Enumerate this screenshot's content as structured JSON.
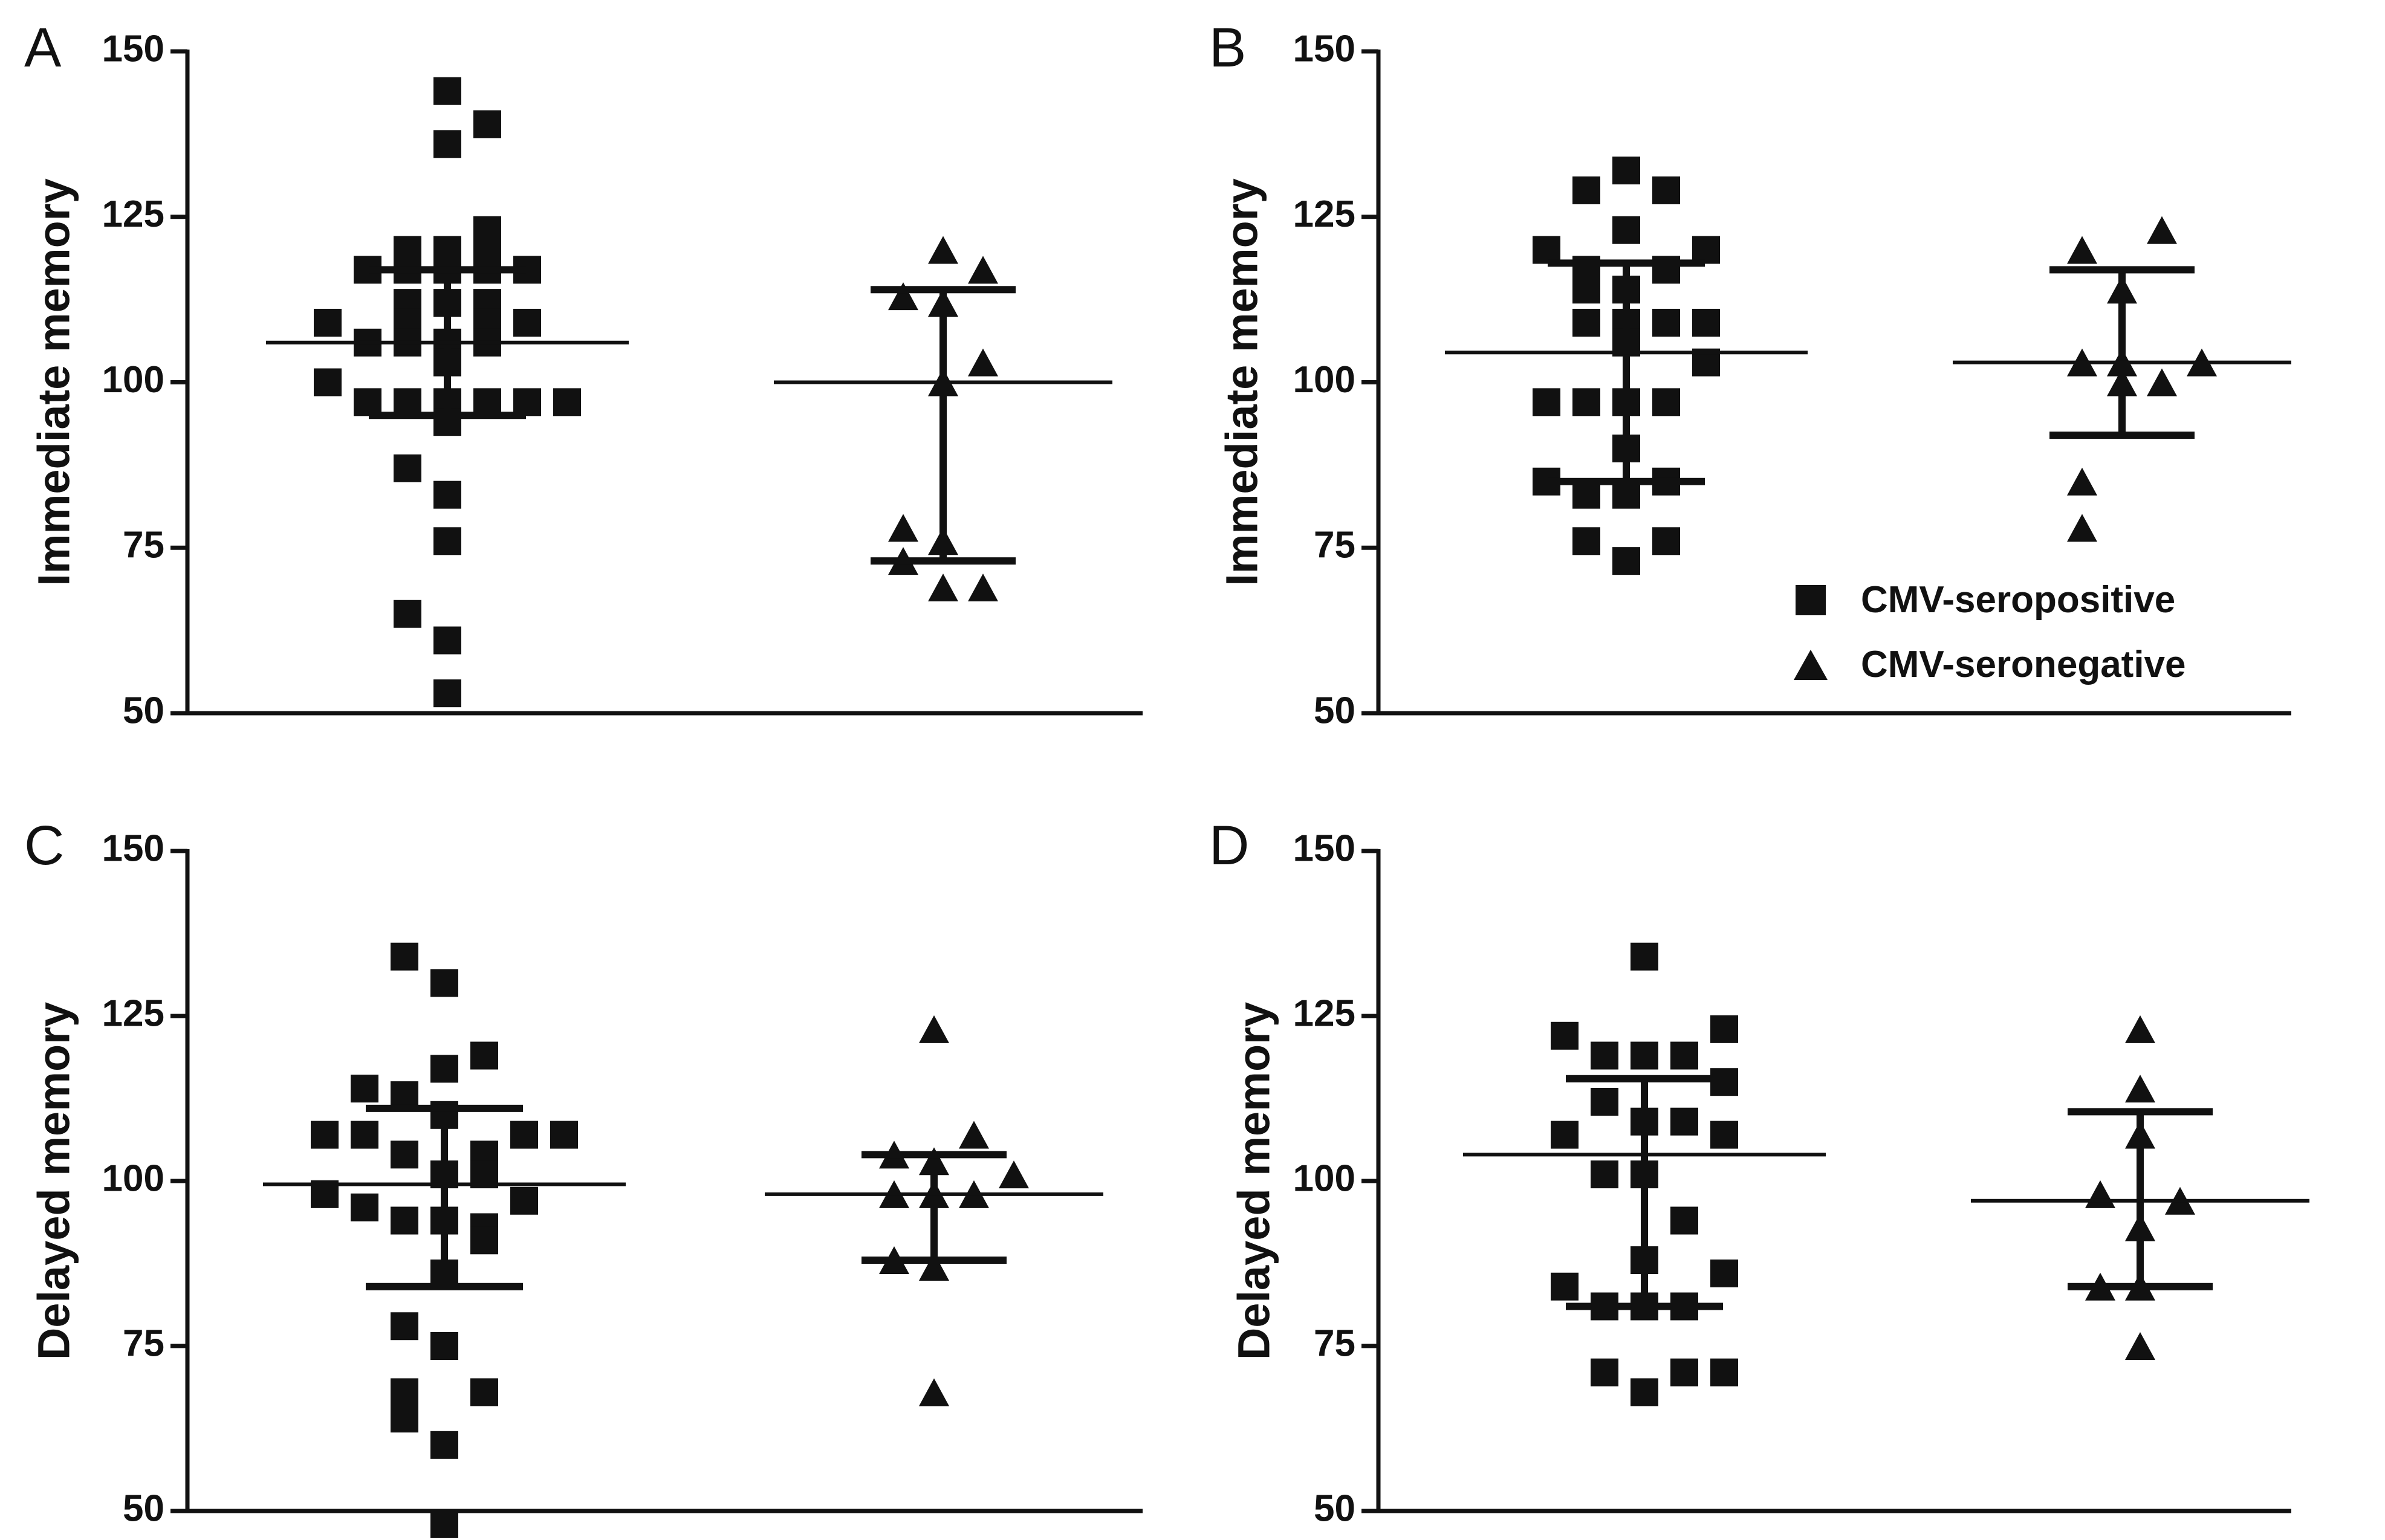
{
  "legend": {
    "items": [
      {
        "label": "CMV-seropositive",
        "marker": "square"
      },
      {
        "label": "CMV-seronegative",
        "marker": "triangle"
      }
    ]
  },
  "chart_data": [
    {
      "type": "scatter",
      "panel": "A",
      "title": "",
      "xlabel": "",
      "ylabel": "Immediate memory",
      "ylim": [
        50,
        150
      ],
      "yticks": [
        "50",
        "75",
        "100",
        "125",
        "150"
      ],
      "groups": [
        {
          "name": "CMV-seropositive",
          "marker": "square",
          "mean": 106,
          "sd_low": 95,
          "sd_high": 117,
          "points": [
            {
              "v": 144,
              "o": 0
            },
            {
              "v": 139,
              "o": 1
            },
            {
              "v": 136,
              "o": 0
            },
            {
              "v": 123,
              "o": 1
            },
            {
              "v": 120,
              "o": -1
            },
            {
              "v": 120,
              "o": 0
            },
            {
              "v": 120,
              "o": 1
            },
            {
              "v": 117,
              "o": -2
            },
            {
              "v": 117,
              "o": -1
            },
            {
              "v": 117,
              "o": 0
            },
            {
              "v": 117,
              "o": 1
            },
            {
              "v": 117,
              "o": 2
            },
            {
              "v": 112,
              "o": -1
            },
            {
              "v": 112,
              "o": 0
            },
            {
              "v": 112,
              "o": 1
            },
            {
              "v": 109,
              "o": -3
            },
            {
              "v": 109,
              "o": -1
            },
            {
              "v": 109,
              "o": 1
            },
            {
              "v": 109,
              "o": 2
            },
            {
              "v": 106,
              "o": -2
            },
            {
              "v": 106,
              "o": -1
            },
            {
              "v": 106,
              "o": 0
            },
            {
              "v": 106,
              "o": 1
            },
            {
              "v": 103,
              "o": 0
            },
            {
              "v": 100,
              "o": -3
            },
            {
              "v": 97,
              "o": -2
            },
            {
              "v": 97,
              "o": -1
            },
            {
              "v": 97,
              "o": 0
            },
            {
              "v": 97,
              "o": 1
            },
            {
              "v": 97,
              "o": 2
            },
            {
              "v": 97,
              "o": 3
            },
            {
              "v": 94,
              "o": 0
            },
            {
              "v": 87,
              "o": -1
            },
            {
              "v": 83,
              "o": 0
            },
            {
              "v": 76,
              "o": 0
            },
            {
              "v": 65,
              "o": -1
            },
            {
              "v": 61,
              "o": 0
            },
            {
              "v": 53,
              "o": 0
            }
          ]
        },
        {
          "name": "CMV-seronegative",
          "marker": "triangle",
          "mean": 100,
          "sd_low": 73,
          "sd_high": 114,
          "points": [
            {
              "v": 120,
              "o": 0
            },
            {
              "v": 117,
              "o": 1
            },
            {
              "v": 113,
              "o": -1
            },
            {
              "v": 112,
              "o": 0
            },
            {
              "v": 103,
              "o": 1
            },
            {
              "v": 100,
              "o": 0
            },
            {
              "v": 78,
              "o": -1
            },
            {
              "v": 76,
              "o": 0
            },
            {
              "v": 73,
              "o": -1
            },
            {
              "v": 69,
              "o": 0
            },
            {
              "v": 69,
              "o": 1
            }
          ]
        }
      ]
    },
    {
      "type": "scatter",
      "panel": "B",
      "title": "",
      "xlabel": "",
      "ylabel": "Immediate memory",
      "ylim": [
        50,
        150
      ],
      "yticks": [
        "50",
        "75",
        "100",
        "125",
        "150"
      ],
      "groups": [
        {
          "name": "CMV-seropositive",
          "marker": "square",
          "mean": 104.5,
          "sd_low": 85,
          "sd_high": 118,
          "points": [
            {
              "v": 132,
              "o": 0
            },
            {
              "v": 129,
              "o": -1
            },
            {
              "v": 129,
              "o": 1
            },
            {
              "v": 123,
              "o": 0
            },
            {
              "v": 120,
              "o": -2
            },
            {
              "v": 120,
              "o": 2
            },
            {
              "v": 117,
              "o": -1
            },
            {
              "v": 117,
              "o": 1
            },
            {
              "v": 114,
              "o": -1
            },
            {
              "v": 114,
              "o": 0
            },
            {
              "v": 109,
              "o": -1
            },
            {
              "v": 109,
              "o": 0
            },
            {
              "v": 109,
              "o": 1
            },
            {
              "v": 109,
              "o": 2
            },
            {
              "v": 106,
              "o": 0
            },
            {
              "v": 103,
              "o": 2
            },
            {
              "v": 97,
              "o": -2
            },
            {
              "v": 97,
              "o": -1
            },
            {
              "v": 97,
              "o": 0
            },
            {
              "v": 97,
              "o": 1
            },
            {
              "v": 90,
              "o": 0
            },
            {
              "v": 85,
              "o": -2
            },
            {
              "v": 85,
              "o": 1
            },
            {
              "v": 83,
              "o": -1
            },
            {
              "v": 83,
              "o": 0
            },
            {
              "v": 76,
              "o": -1
            },
            {
              "v": 76,
              "o": 1
            },
            {
              "v": 73,
              "o": 0
            }
          ]
        },
        {
          "name": "CMV-seronegative",
          "marker": "triangle",
          "mean": 103,
          "sd_low": 92,
          "sd_high": 117,
          "points": [
            {
              "v": 123,
              "o": 1
            },
            {
              "v": 120,
              "o": -1
            },
            {
              "v": 114,
              "o": 0
            },
            {
              "v": 103,
              "o": -1
            },
            {
              "v": 103,
              "o": 0
            },
            {
              "v": 103,
              "o": 2
            },
            {
              "v": 100,
              "o": 0
            },
            {
              "v": 100,
              "o": 1
            },
            {
              "v": 85,
              "o": -1
            },
            {
              "v": 78,
              "o": -1
            }
          ]
        }
      ]
    },
    {
      "type": "scatter",
      "panel": "C",
      "title": "",
      "xlabel": "",
      "ylabel": "Delayed memory",
      "ylim": [
        50,
        150
      ],
      "yticks": [
        "50",
        "75",
        "100",
        "125",
        "150"
      ],
      "groups": [
        {
          "name": "CMV-seropositive",
          "marker": "square",
          "mean": 99.5,
          "sd_low": 84,
          "sd_high": 111,
          "points": [
            {
              "v": 134,
              "o": -1
            },
            {
              "v": 130,
              "o": 0
            },
            {
              "v": 119,
              "o": 1
            },
            {
              "v": 117,
              "o": 0
            },
            {
              "v": 114,
              "o": -2
            },
            {
              "v": 113,
              "o": -1
            },
            {
              "v": 110,
              "o": 0
            },
            {
              "v": 107,
              "o": -3
            },
            {
              "v": 107,
              "o": -2
            },
            {
              "v": 107,
              "o": 2
            },
            {
              "v": 107,
              "o": 3
            },
            {
              "v": 104,
              "o": -1
            },
            {
              "v": 104,
              "o": 1
            },
            {
              "v": 101,
              "o": 0
            },
            {
              "v": 101,
              "o": 1
            },
            {
              "v": 98,
              "o": -3
            },
            {
              "v": 97,
              "o": 2
            },
            {
              "v": 96,
              "o": -2
            },
            {
              "v": 94,
              "o": -1
            },
            {
              "v": 94,
              "o": 0
            },
            {
              "v": 93,
              "o": 1
            },
            {
              "v": 91,
              "o": 1
            },
            {
              "v": 86,
              "o": 0
            },
            {
              "v": 78,
              "o": -1
            },
            {
              "v": 75,
              "o": 0
            },
            {
              "v": 68,
              "o": -1
            },
            {
              "v": 68,
              "o": 1
            },
            {
              "v": 64,
              "o": -1
            },
            {
              "v": 60,
              "o": 0
            },
            {
              "v": 48,
              "o": 0
            }
          ]
        },
        {
          "name": "CMV-seronegative",
          "marker": "triangle",
          "mean": 98,
          "sd_low": 88,
          "sd_high": 104,
          "points": [
            {
              "v": 123,
              "o": 0
            },
            {
              "v": 107,
              "o": 1
            },
            {
              "v": 104,
              "o": -1
            },
            {
              "v": 103,
              "o": 0
            },
            {
              "v": 101,
              "o": 2
            },
            {
              "v": 98,
              "o": -1
            },
            {
              "v": 98,
              "o": 0
            },
            {
              "v": 98,
              "o": 1
            },
            {
              "v": 88,
              "o": -1
            },
            {
              "v": 87,
              "o": 0
            },
            {
              "v": 68,
              "o": 0
            }
          ]
        }
      ]
    },
    {
      "type": "scatter",
      "panel": "D",
      "title": "",
      "xlabel": "",
      "ylabel": "Delayed memory",
      "ylim": [
        50,
        150
      ],
      "yticks": [
        "50",
        "75",
        "100",
        "125",
        "150"
      ],
      "groups": [
        {
          "name": "CMV-seropositive",
          "marker": "square",
          "mean": 104,
          "sd_low": 81,
          "sd_high": 115.5,
          "points": [
            {
              "v": 134,
              "o": 0
            },
            {
              "v": 123,
              "o": 2
            },
            {
              "v": 122,
              "o": -2
            },
            {
              "v": 119,
              "o": -1
            },
            {
              "v": 119,
              "o": 0
            },
            {
              "v": 119,
              "o": 1
            },
            {
              "v": 115,
              "o": 2
            },
            {
              "v": 112,
              "o": -1
            },
            {
              "v": 109,
              "o": 0
            },
            {
              "v": 109,
              "o": 1
            },
            {
              "v": 107,
              "o": -2
            },
            {
              "v": 107,
              "o": 2
            },
            {
              "v": 101,
              "o": -1
            },
            {
              "v": 101,
              "o": 0
            },
            {
              "v": 94,
              "o": 1
            },
            {
              "v": 88,
              "o": 0
            },
            {
              "v": 86,
              "o": 2
            },
            {
              "v": 84,
              "o": -2
            },
            {
              "v": 81,
              "o": -1
            },
            {
              "v": 81,
              "o": 0
            },
            {
              "v": 81,
              "o": 1
            },
            {
              "v": 71,
              "o": -1
            },
            {
              "v": 71,
              "o": 1
            },
            {
              "v": 71,
              "o": 2
            },
            {
              "v": 68,
              "o": 0
            }
          ]
        },
        {
          "name": "CMV-seronegative",
          "marker": "triangle",
          "mean": 97,
          "sd_low": 84,
          "sd_high": 110.5,
          "points": [
            {
              "v": 123,
              "o": 0
            },
            {
              "v": 114,
              "o": 0
            },
            {
              "v": 107,
              "o": 0
            },
            {
              "v": 98,
              "o": -1
            },
            {
              "v": 97,
              "o": 1
            },
            {
              "v": 93,
              "o": 0
            },
            {
              "v": 84,
              "o": -1
            },
            {
              "v": 84,
              "o": 0
            },
            {
              "v": 75,
              "o": 0
            }
          ]
        }
      ]
    }
  ]
}
